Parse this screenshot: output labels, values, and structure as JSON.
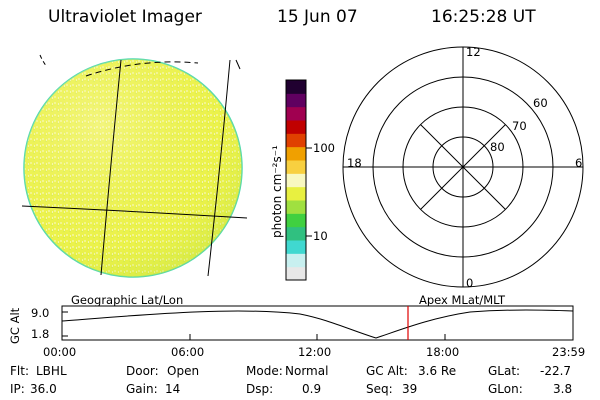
{
  "header": {
    "title": "Ultraviolet Imager",
    "date": "15 Jun 07",
    "time": "16:25:28 UT"
  },
  "colorbar": {
    "unit_label": "photon cm⁻²s⁻¹",
    "tick_100": "100",
    "tick_10": "10",
    "colors": [
      "#e8e8e8",
      "#c8f0f0",
      "#40d8d0",
      "#30c080",
      "#40d040",
      "#a0e040",
      "#e8f040",
      "#f8f8c0",
      "#f8d040",
      "#f0a000",
      "#e04000",
      "#c00000",
      "#a00050",
      "#600060",
      "#200030"
    ]
  },
  "polar_plot": {
    "labels": {
      "top": "12",
      "left": "18",
      "right": "6",
      "bottom": "0",
      "ring_60": "60",
      "ring_70": "70",
      "ring_80": "80"
    }
  },
  "lower_panel": {
    "left_caption": "Geographic Lat/Lon",
    "right_caption": "Apex MLat/MLT",
    "axis_label": "GC Alt",
    "y_top": "9.0",
    "y_bottom": "1.8",
    "x_ticks": [
      "00:00",
      "06:00",
      "12:00",
      "18:00",
      "23:59"
    ],
    "marker_color": "#e00000"
  },
  "info": {
    "flt_label": "Flt:",
    "flt_value": "LBHL",
    "door_label": "Door:",
    "door_value": "Open",
    "mode_label": "Mode:",
    "mode_value": "Normal",
    "gcalt_label": "GC Alt:",
    "gcalt_value": "3.6 Re",
    "glat_label": "GLat:",
    "glat_value": "-22.7",
    "ip_label": "IP:",
    "ip_value": "36.0",
    "gain_label": "Gain:",
    "gain_value": "14",
    "dsp_label": "Dsp:",
    "dsp_value": "0.9",
    "seq_label": "Seq:",
    "seq_value": "39",
    "glon_label": "GLon:",
    "glon_value": "3.8"
  }
}
